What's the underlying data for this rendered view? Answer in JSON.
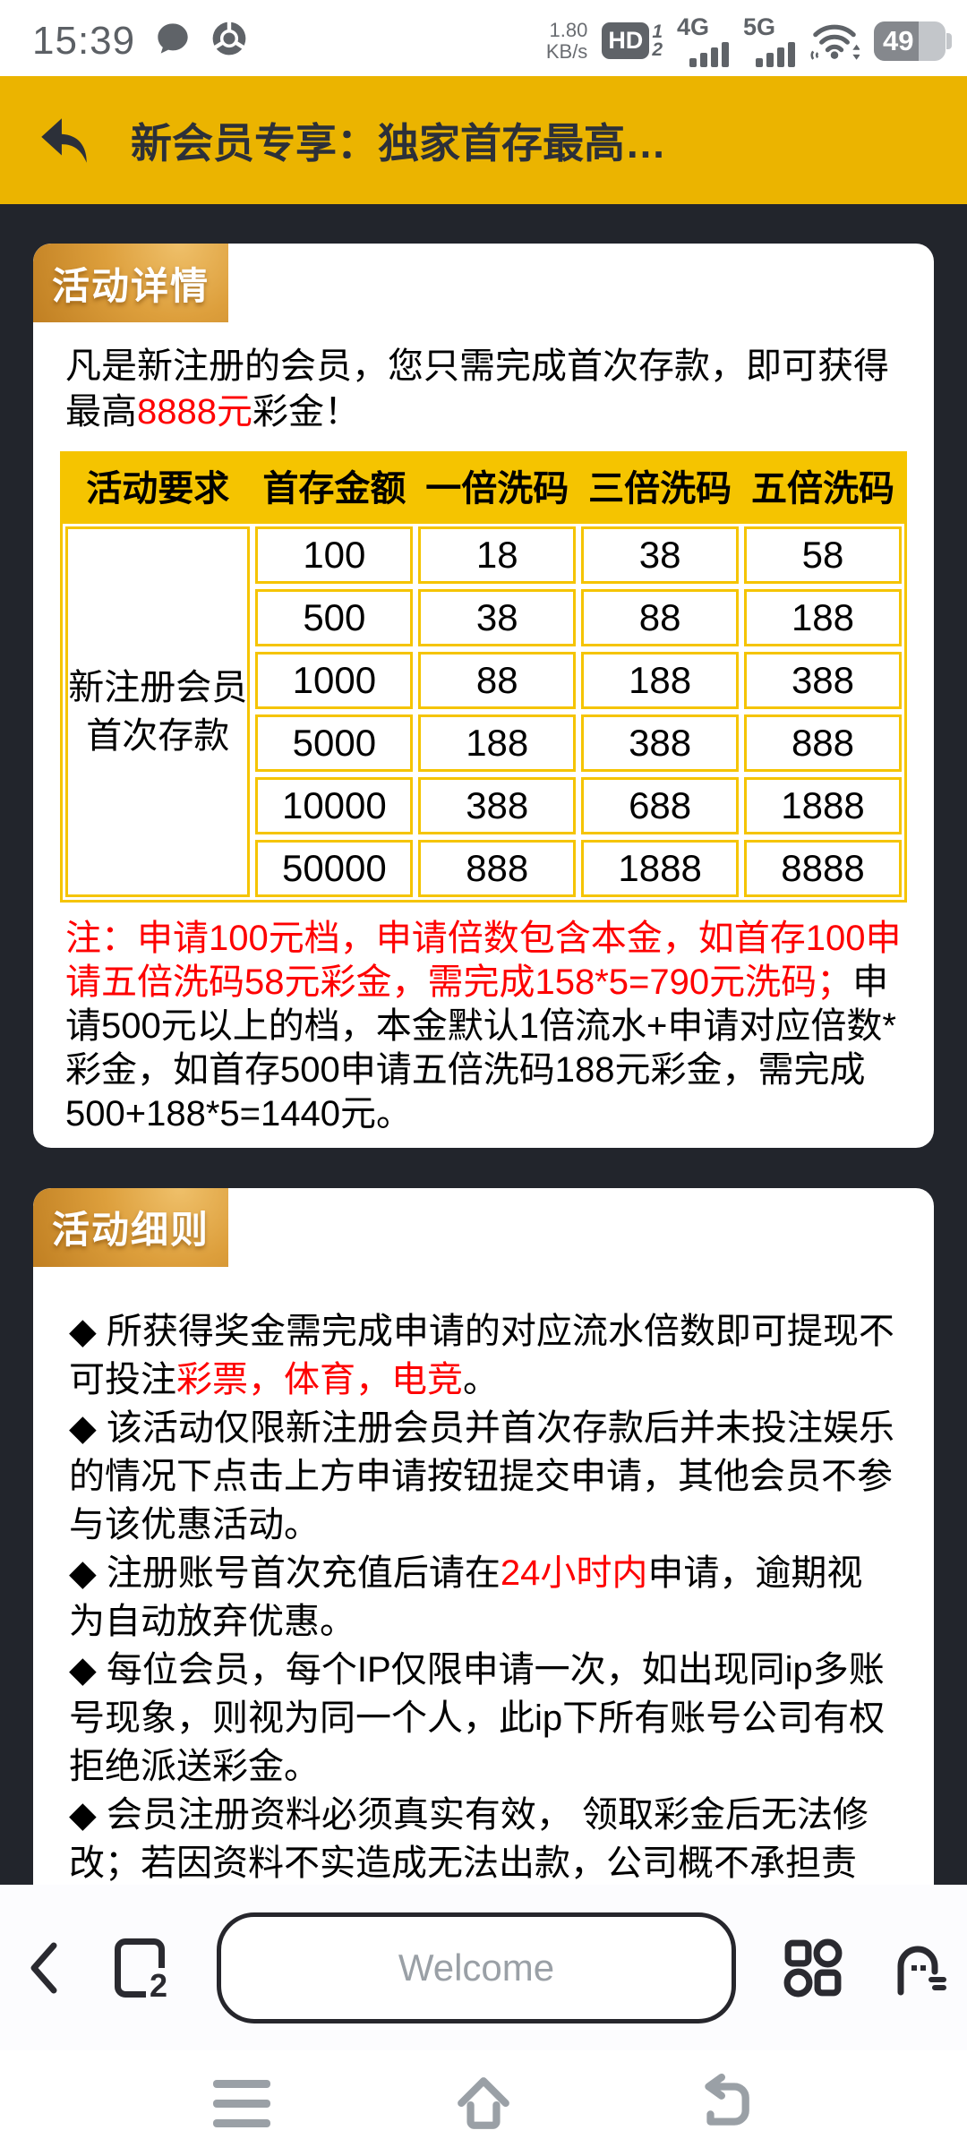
{
  "status_bar": {
    "time": "15:39",
    "net_speed_top": "1.80",
    "net_speed_bottom": "KB/s",
    "hd_label": "HD",
    "sim1": "1",
    "sim2": "2",
    "net_4g": "4G",
    "net_5g": "5G",
    "battery_percent": "49"
  },
  "header": {
    "title": "新会员专享：独家首存最高…"
  },
  "details_card": {
    "banner": "活动详情",
    "intro_segments": [
      {
        "text": "凡是新注册的会员，您只需完成首次存款，即可获得最高",
        "red": false
      },
      {
        "text": "8888元",
        "red": true
      },
      {
        "text": "彩金！",
        "red": false
      }
    ],
    "table": {
      "headers": [
        "活动要求",
        "首存金额",
        "一倍洗码",
        "三倍洗码",
        "五倍洗码"
      ],
      "row_label": "新注册会员\n首次存款",
      "rows": [
        [
          "100",
          "18",
          "38",
          "58"
        ],
        [
          "500",
          "38",
          "88",
          "188"
        ],
        [
          "1000",
          "88",
          "188",
          "388"
        ],
        [
          "5000",
          "188",
          "388",
          "888"
        ],
        [
          "10000",
          "388",
          "688",
          "1888"
        ],
        [
          "50000",
          "888",
          "1888",
          "8888"
        ]
      ]
    },
    "note_segments": [
      {
        "text": "注：申请100元档，申请倍数包含本金，如首存100申请五倍洗码58元彩金，需完成158*5=790元洗码；",
        "red": true
      },
      {
        "text": "申请500元以上的档，本金默认1倍流水+申请对应倍数*彩金，如首存500申请五倍洗码188元彩金，需完成500+188*5=1440元。",
        "red": false
      }
    ]
  },
  "rules_card": {
    "banner": "活动细则",
    "rules": [
      [
        {
          "text": "◆ 所获得奖金需完成申请的对应流水倍数即可提现不可投注",
          "red": false
        },
        {
          "text": "彩票，体育，电竞",
          "red": true
        },
        {
          "text": "。",
          "red": false
        }
      ],
      [
        {
          "text": "◆ 该活动仅限新注册会员并首次存款后并未投注娱乐的情况下点击上方申请按钮提交申请，其他会员不参与该优惠活动。",
          "red": false
        }
      ],
      [
        {
          "text": "◆ 注册账号首次充值后请在",
          "red": false
        },
        {
          "text": "24小时内",
          "red": true
        },
        {
          "text": "申请，逾期视为自动放弃优惠。",
          "red": false
        }
      ],
      [
        {
          "text": "◆ 每位会员，每个IP仅限申请一次，如出现同ip多账号现象，则视为同一个人，此ip下所有账号公司有权拒绝派送彩金。",
          "red": false
        }
      ],
      [
        {
          "text": "◆ 会员注册资料必须真实有效， 领取彩金后无法修改；若因资料不实造成无法出款，公司概不承担责任。",
          "red": false
        }
      ]
    ]
  },
  "toolbar": {
    "tab_count": "2",
    "url_placeholder": "Welcome"
  },
  "colors": {
    "header_yellow": "#ebb400",
    "table_yellow": "#f5c400",
    "alert_red": "#fe0000",
    "page_dark": "#22252c"
  }
}
